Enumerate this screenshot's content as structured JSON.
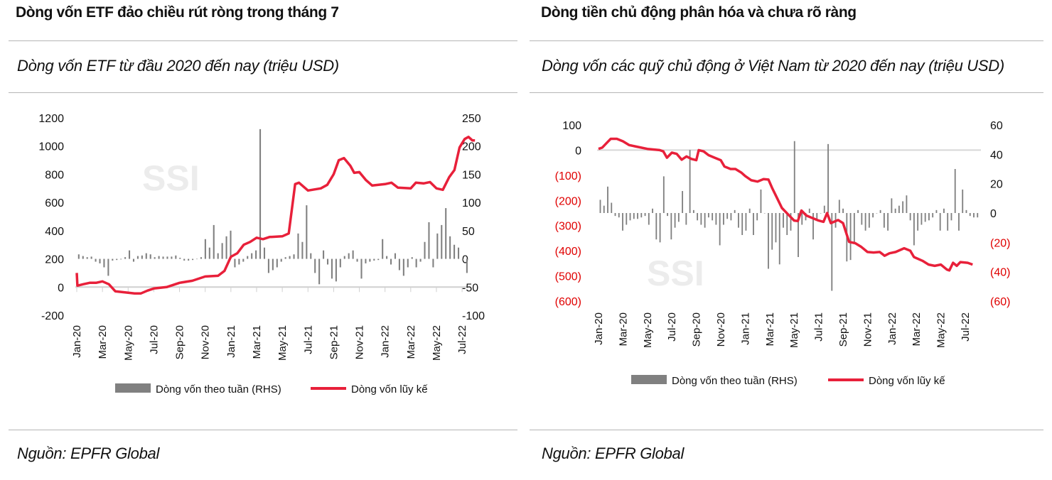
{
  "left_panel": {
    "title": "Dòng vốn ETF đảo chiều rút ròng trong tháng 7",
    "subtitle": "Dòng vốn ETF từ đầu 2020 đến nay (triệu USD)",
    "source": "Nguồn: EPFR Global"
  },
  "right_panel": {
    "title": "Dòng tiền chủ động phân hóa và chưa rõ ràng",
    "subtitle": "Dòng vốn các quỹ chủ động ở Việt Nam từ 2020 đến nay (triệu USD)",
    "source": "Nguồn: EPFR Global"
  },
  "colors": {
    "line": "#e8203a",
    "bars": "#808080",
    "negative_label": "#e00000",
    "watermark": "#ececec"
  },
  "chart_data": [
    {
      "type": "bar",
      "watermark": "SSI",
      "x_tick_labels": [
        "Jan-20",
        "Mar-20",
        "May-20",
        "Jul-20",
        "Sep-20",
        "Nov-20",
        "Jan-21",
        "Mar-21",
        "May-21",
        "Jul-21",
        "Sep-21",
        "Nov-21",
        "Jan-22",
        "Mar-22",
        "May-22",
        "Jul-22"
      ],
      "y_left": {
        "ticks": [
          "1200",
          "1000",
          "800",
          "600",
          "400",
          "200",
          "0",
          "-200"
        ],
        "range": [
          -200,
          1200
        ]
      },
      "y_right": {
        "ticks": [
          "250",
          "200",
          "150",
          "100",
          "50",
          "0",
          "-50",
          "-100"
        ],
        "range": [
          -100,
          250
        ]
      },
      "legend_position": "bottom",
      "series": [
        {
          "name": "Dòng vốn theo tuần (RHS)",
          "type": "bar",
          "axis": "right",
          "x_start": "Jan-20",
          "x_end": "Jul-22",
          "values": [
            8,
            5,
            3,
            4,
            -5,
            -8,
            -15,
            -30,
            -3,
            -2,
            -1,
            3,
            15,
            -5,
            5,
            6,
            10,
            8,
            3,
            5,
            4,
            4,
            4,
            6,
            2,
            -3,
            -3,
            -2,
            0,
            3,
            35,
            20,
            60,
            10,
            28,
            40,
            50,
            -15,
            -10,
            -5,
            5,
            10,
            15,
            230,
            20,
            -25,
            -20,
            -15,
            -5,
            3,
            5,
            8,
            45,
            30,
            95,
            10,
            -25,
            -45,
            15,
            -10,
            -35,
            -40,
            -15,
            5,
            10,
            15,
            -5,
            -35,
            -8,
            -5,
            -3,
            -2,
            35,
            5,
            -10,
            10,
            -20,
            -30,
            -15,
            3,
            -15,
            -5,
            30,
            65,
            -15,
            45,
            60,
            90,
            40,
            25,
            20,
            -3,
            -25
          ]
        },
        {
          "name": "Dòng vốn lũy kế",
          "type": "line",
          "axis": "left",
          "points": [
            [
              0,
              100
            ],
            [
              0.05,
              10
            ],
            [
              0.5,
              20
            ],
            [
              1,
              30
            ],
            [
              1.5,
              30
            ],
            [
              2,
              40
            ],
            [
              2.5,
              20
            ],
            [
              3,
              -30
            ],
            [
              4,
              -40
            ],
            [
              4.5,
              -45
            ],
            [
              5,
              -45
            ],
            [
              5.5,
              -25
            ],
            [
              6,
              -10
            ],
            [
              7,
              0
            ],
            [
              8,
              30
            ],
            [
              9,
              45
            ],
            [
              10,
              75
            ],
            [
              11,
              80
            ],
            [
              11.5,
              115
            ],
            [
              12,
              215
            ],
            [
              12.5,
              240
            ],
            [
              13,
              300
            ],
            [
              13.5,
              320
            ],
            [
              14,
              350
            ],
            [
              14.5,
              340
            ],
            [
              15,
              355
            ],
            [
              16,
              360
            ],
            [
              16.5,
              380
            ],
            [
              17,
              730
            ],
            [
              17.3,
              740
            ],
            [
              18,
              685
            ],
            [
              19,
              700
            ],
            [
              19.5,
              725
            ],
            [
              20,
              800
            ],
            [
              20.4,
              900
            ],
            [
              20.8,
              915
            ],
            [
              21.3,
              860
            ],
            [
              21.6,
              810
            ],
            [
              22,
              815
            ],
            [
              22.5,
              760
            ],
            [
              23,
              720
            ],
            [
              24,
              730
            ],
            [
              24.5,
              740
            ],
            [
              25,
              705
            ],
            [
              26,
              700
            ],
            [
              26.4,
              740
            ],
            [
              27,
              735
            ],
            [
              27.5,
              745
            ],
            [
              28,
              700
            ],
            [
              28.5,
              690
            ],
            [
              29,
              780
            ],
            [
              29.4,
              830
            ],
            [
              29.8,
              990
            ],
            [
              30.2,
              1050
            ],
            [
              30.5,
              1065
            ],
            [
              30.8,
              1040
            ],
            [
              31,
              1040
            ]
          ]
        }
      ]
    },
    {
      "type": "bar",
      "watermark": "SSI",
      "x_tick_labels": [
        "Jan-20",
        "Mar-20",
        "May-20",
        "Jul-20",
        "Sep-20",
        "Nov-20",
        "Jan-21",
        "Mar-21",
        "May-21",
        "Jul-21",
        "Sep-21",
        "Nov-21",
        "Jan-22",
        "Mar-22",
        "May-22",
        "Jul-22"
      ],
      "y_left": {
        "ticks": [
          "100",
          "0",
          "(100)",
          "(200)",
          "(300)",
          "(400)",
          "(500)",
          "(600)"
        ],
        "range": [
          -600,
          100
        ]
      },
      "y_right": {
        "ticks": [
          "60",
          "40",
          "20",
          "0",
          "(20)",
          "(40)",
          "(60)"
        ],
        "range": [
          -60,
          60
        ]
      },
      "legend_position": "bottom",
      "series": [
        {
          "name": "Dòng vốn theo tuần (RHS)",
          "type": "bar",
          "axis": "right",
          "x_start": "Jan-20",
          "x_end": "Jul-22",
          "values": [
            9,
            5,
            18,
            7,
            -2,
            -3,
            -12,
            -8,
            -5,
            -4,
            -4,
            -3,
            -2,
            -8,
            3,
            -18,
            -20,
            25,
            -2,
            -18,
            -10,
            -6,
            15,
            -8,
            43,
            2,
            -5,
            -8,
            -10,
            -3,
            -5,
            -8,
            -22,
            -8,
            -4,
            -5,
            2,
            -10,
            -15,
            -12,
            3,
            -15,
            -5,
            16,
            0,
            -38,
            -25,
            -20,
            -35,
            -10,
            -15,
            -12,
            49,
            -30,
            -8,
            -5,
            3,
            -18,
            -5,
            0,
            5,
            47,
            -53,
            -10,
            9,
            3,
            -33,
            -32,
            -20,
            2,
            -8,
            -12,
            -10,
            -3,
            0,
            2,
            -10,
            -12,
            10,
            3,
            5,
            8,
            12,
            -5,
            -22,
            -12,
            -8,
            -6,
            -5,
            -3,
            2,
            -12,
            3,
            -12,
            -5,
            30,
            -12,
            16,
            2,
            -2,
            -3,
            -3
          ]
        },
        {
          "name": "Dòng vốn lũy kế",
          "type": "line",
          "axis": "left",
          "points": [
            [
              0,
              5
            ],
            [
              0.3,
              10
            ],
            [
              0.7,
              30
            ],
            [
              1,
              45
            ],
            [
              1.5,
              45
            ],
            [
              2,
              35
            ],
            [
              2.5,
              20
            ],
            [
              3,
              15
            ],
            [
              4,
              5
            ],
            [
              5,
              0
            ],
            [
              5.3,
              -5
            ],
            [
              5.6,
              -30
            ],
            [
              6,
              -10
            ],
            [
              6.4,
              -15
            ],
            [
              6.8,
              -38
            ],
            [
              7.2,
              -25
            ],
            [
              7.6,
              -35
            ],
            [
              8,
              -40
            ],
            [
              8.2,
              0
            ],
            [
              8.6,
              -5
            ],
            [
              9,
              -20
            ],
            [
              9.5,
              -30
            ],
            [
              10,
              -40
            ],
            [
              10.3,
              -65
            ],
            [
              10.8,
              -75
            ],
            [
              11.2,
              -75
            ],
            [
              11.7,
              -90
            ],
            [
              12,
              -103
            ],
            [
              12.5,
              -120
            ],
            [
              13,
              -125
            ],
            [
              13.5,
              -115
            ],
            [
              13.9,
              -117
            ],
            [
              14.2,
              -150
            ],
            [
              14.6,
              -190
            ],
            [
              15,
              -230
            ],
            [
              15.5,
              -255
            ],
            [
              16,
              -280
            ],
            [
              16.3,
              -282
            ],
            [
              16.6,
              -240
            ],
            [
              17,
              -260
            ],
            [
              17.5,
              -270
            ],
            [
              18,
              -280
            ],
            [
              18.4,
              -285
            ],
            [
              18.7,
              -250
            ],
            [
              19,
              -290
            ],
            [
              19.6,
              -278
            ],
            [
              20,
              -290
            ],
            [
              20.5,
              -365
            ],
            [
              21,
              -370
            ],
            [
              21.5,
              -385
            ],
            [
              22,
              -405
            ],
            [
              22.5,
              -407
            ],
            [
              23,
              -405
            ],
            [
              23.4,
              -420
            ],
            [
              23.8,
              -410
            ],
            [
              24.3,
              -405
            ],
            [
              25,
              -390
            ],
            [
              25.5,
              -400
            ],
            [
              25.8,
              -425
            ],
            [
              26.5,
              -440
            ],
            [
              27,
              -455
            ],
            [
              27.5,
              -460
            ],
            [
              28,
              -455
            ],
            [
              28.5,
              -475
            ],
            [
              28.7,
              -478
            ],
            [
              29,
              -448
            ],
            [
              29.3,
              -460
            ],
            [
              29.6,
              -445
            ],
            [
              30.2,
              -448
            ],
            [
              30.6,
              -455
            ]
          ]
        }
      ]
    }
  ]
}
